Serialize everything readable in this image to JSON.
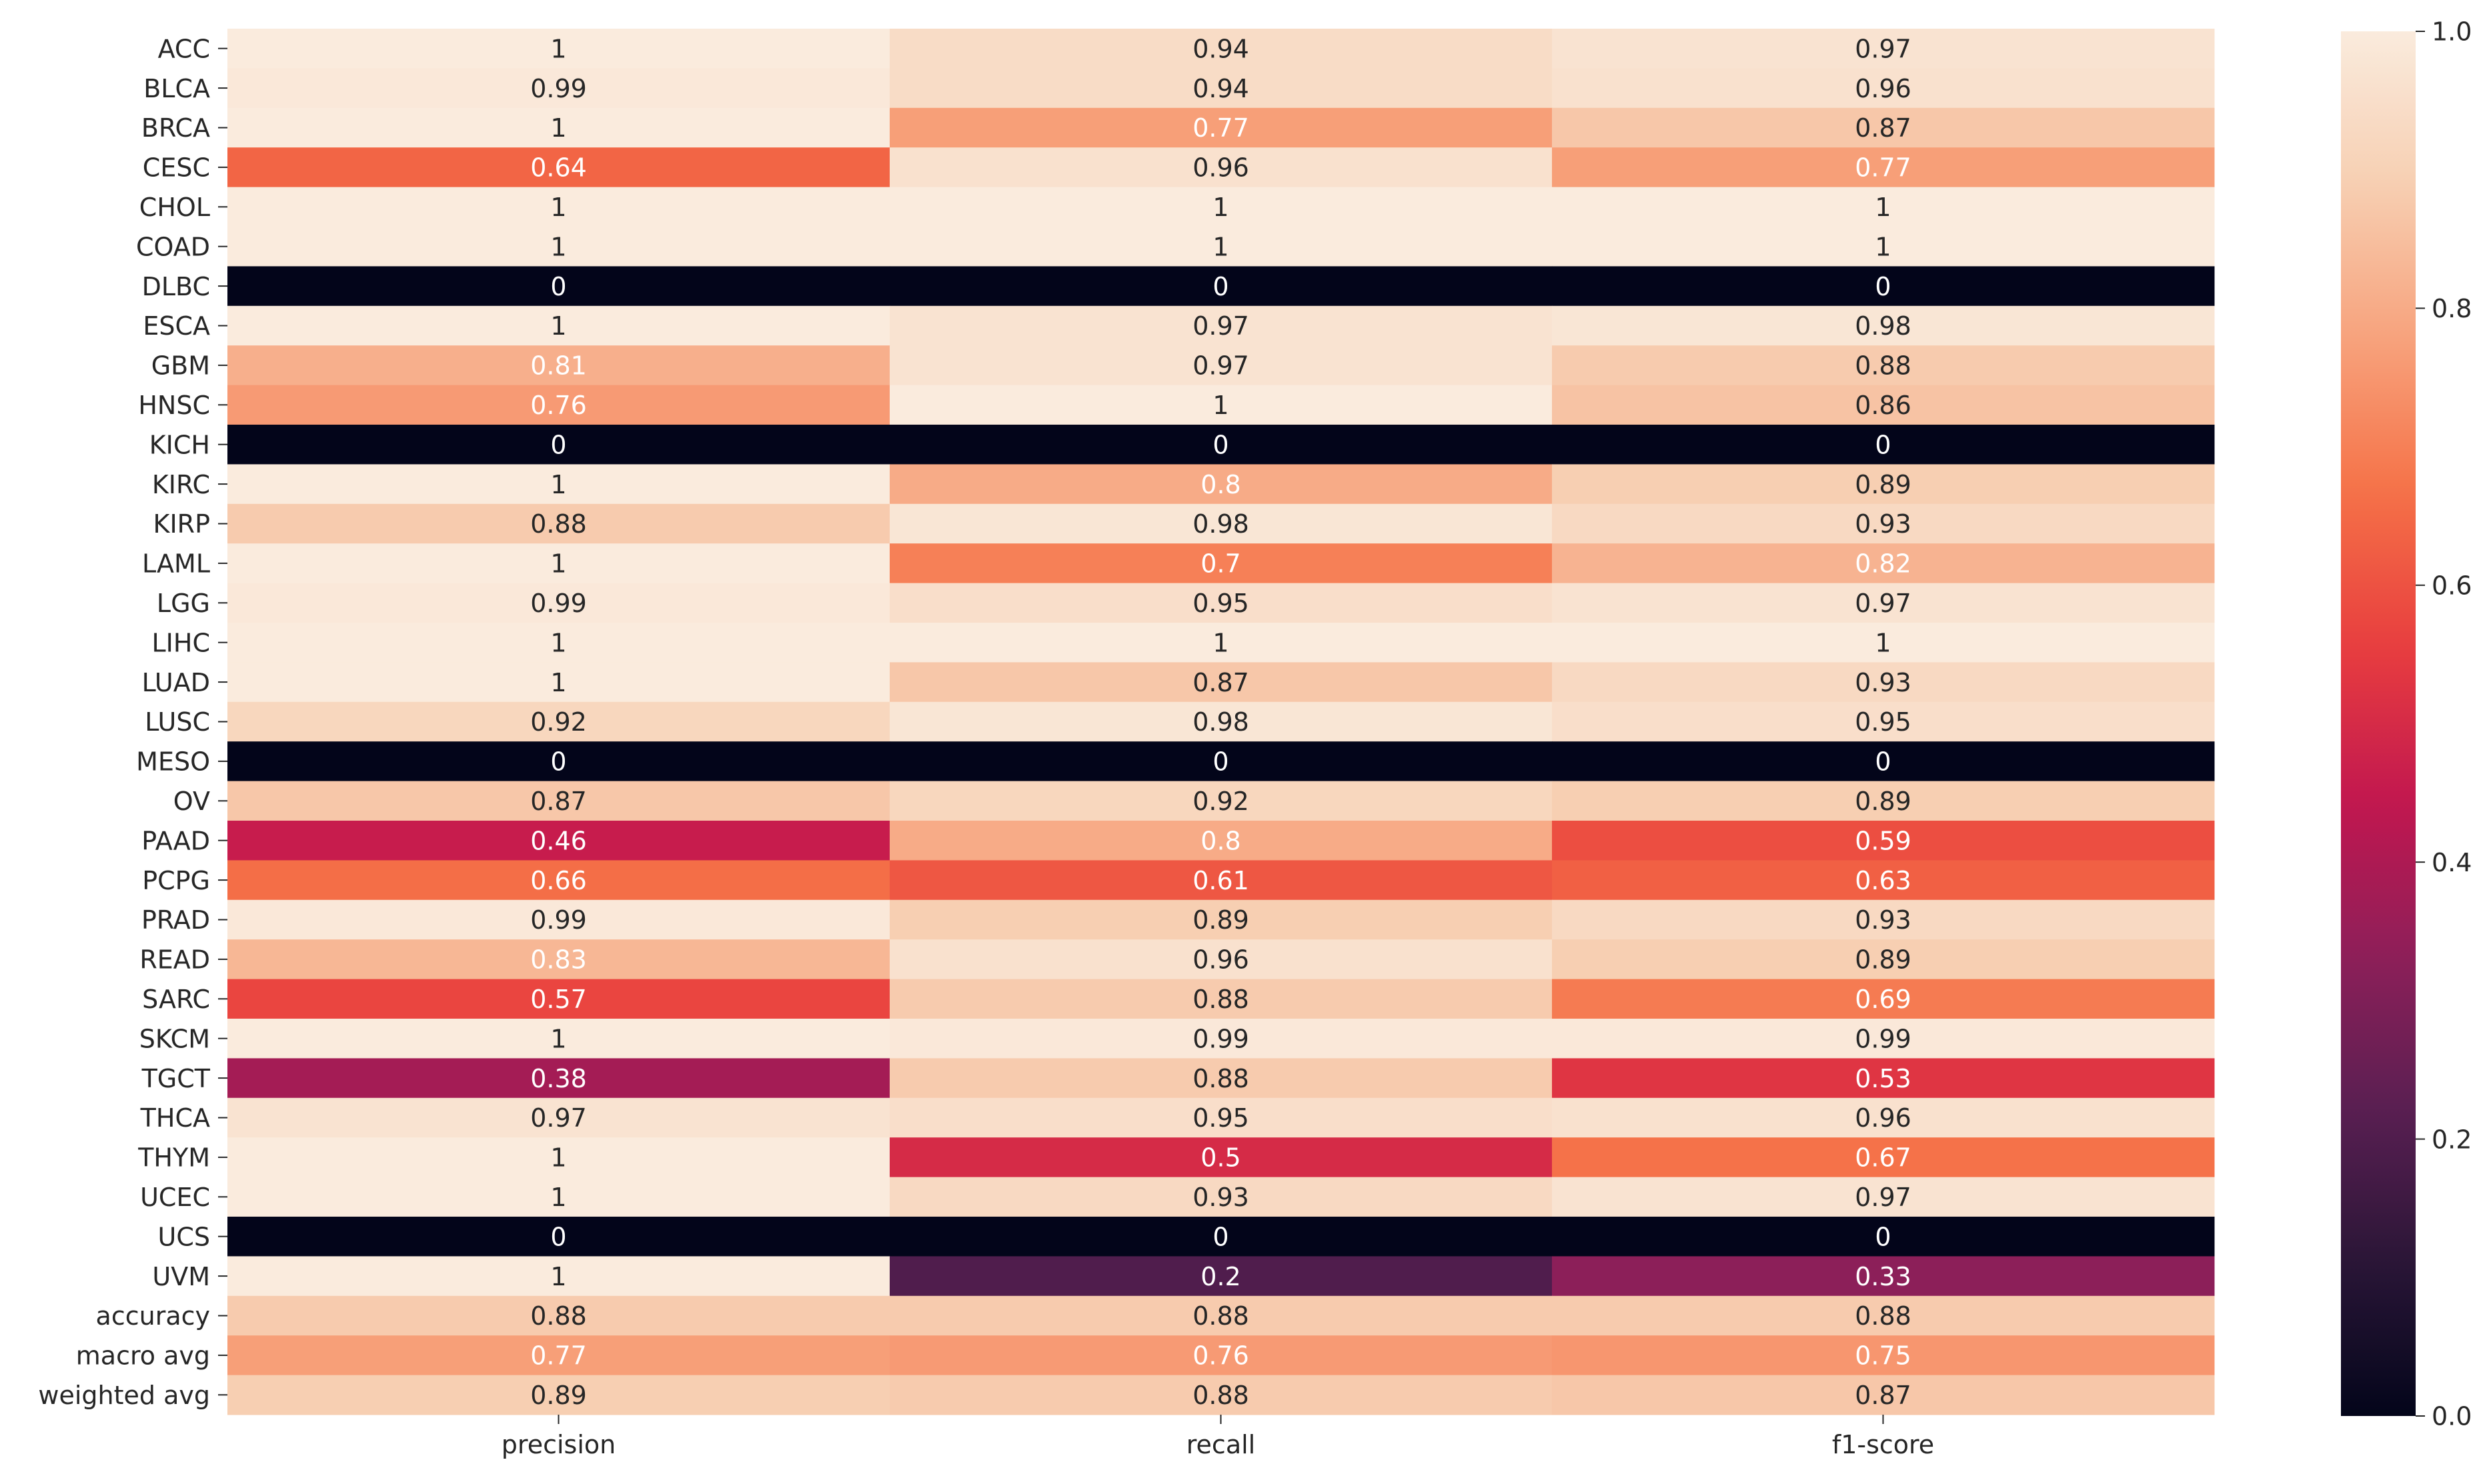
{
  "chart_data": {
    "type": "heatmap",
    "title": "",
    "xlabel": "",
    "ylabel": "",
    "columns": [
      "precision",
      "recall",
      "f1-score"
    ],
    "rows": [
      "ACC",
      "BLCA",
      "BRCA",
      "CESC",
      "CHOL",
      "COAD",
      "DLBC",
      "ESCA",
      "GBM",
      "HNSC",
      "KICH",
      "KIRC",
      "KIRP",
      "LAML",
      "LGG",
      "LIHC",
      "LUAD",
      "LUSC",
      "MESO",
      "OV",
      "PAAD",
      "PCPG",
      "PRAD",
      "READ",
      "SARC",
      "SKCM",
      "TGCT",
      "THCA",
      "THYM",
      "UCEC",
      "UCS",
      "UVM",
      "accuracy",
      "macro avg",
      "weighted avg"
    ],
    "values": [
      [
        1,
        0.94,
        0.97
      ],
      [
        0.99,
        0.94,
        0.96
      ],
      [
        1,
        0.77,
        0.87
      ],
      [
        0.64,
        0.96,
        0.77
      ],
      [
        1,
        1,
        1
      ],
      [
        1,
        1,
        1
      ],
      [
        0,
        0,
        0
      ],
      [
        1,
        0.97,
        0.98
      ],
      [
        0.81,
        0.97,
        0.88
      ],
      [
        0.76,
        1,
        0.86
      ],
      [
        0,
        0,
        0
      ],
      [
        1,
        0.8,
        0.89
      ],
      [
        0.88,
        0.98,
        0.93
      ],
      [
        1,
        0.7,
        0.82
      ],
      [
        0.99,
        0.95,
        0.97
      ],
      [
        1,
        1,
        1
      ],
      [
        1,
        0.87,
        0.93
      ],
      [
        0.92,
        0.98,
        0.95
      ],
      [
        0,
        0,
        0
      ],
      [
        0.87,
        0.92,
        0.89
      ],
      [
        0.46,
        0.8,
        0.59
      ],
      [
        0.66,
        0.61,
        0.63
      ],
      [
        0.99,
        0.89,
        0.93
      ],
      [
        0.83,
        0.96,
        0.89
      ],
      [
        0.57,
        0.88,
        0.69
      ],
      [
        1,
        0.99,
        0.99
      ],
      [
        0.38,
        0.88,
        0.53
      ],
      [
        0.97,
        0.95,
        0.96
      ],
      [
        1,
        0.5,
        0.67
      ],
      [
        1,
        0.93,
        0.97
      ],
      [
        0,
        0,
        0
      ],
      [
        1,
        0.2,
        0.33
      ],
      [
        0.88,
        0.88,
        0.88
      ],
      [
        0.77,
        0.76,
        0.75
      ],
      [
        0.89,
        0.88,
        0.87
      ]
    ],
    "cell_labels": [
      [
        "1",
        "0.94",
        "0.97"
      ],
      [
        "0.99",
        "0.94",
        "0.96"
      ],
      [
        "1",
        "0.77",
        "0.87"
      ],
      [
        "0.64",
        "0.96",
        "0.77"
      ],
      [
        "1",
        "1",
        "1"
      ],
      [
        "1",
        "1",
        "1"
      ],
      [
        "0",
        "0",
        "0"
      ],
      [
        "1",
        "0.97",
        "0.98"
      ],
      [
        "0.81",
        "0.97",
        "0.88"
      ],
      [
        "0.76",
        "1",
        "0.86"
      ],
      [
        "0",
        "0",
        "0"
      ],
      [
        "1",
        "0.8",
        "0.89"
      ],
      [
        "0.88",
        "0.98",
        "0.93"
      ],
      [
        "1",
        "0.7",
        "0.82"
      ],
      [
        "0.99",
        "0.95",
        "0.97"
      ],
      [
        "1",
        "1",
        "1"
      ],
      [
        "1",
        "0.87",
        "0.93"
      ],
      [
        "0.92",
        "0.98",
        "0.95"
      ],
      [
        "0",
        "0",
        "0"
      ],
      [
        "0.87",
        "0.92",
        "0.89"
      ],
      [
        "0.46",
        "0.8",
        "0.59"
      ],
      [
        "0.66",
        "0.61",
        "0.63"
      ],
      [
        "0.99",
        "0.89",
        "0.93"
      ],
      [
        "0.83",
        "0.96",
        "0.89"
      ],
      [
        "0.57",
        "0.88",
        "0.69"
      ],
      [
        "1",
        "0.99",
        "0.99"
      ],
      [
        "0.38",
        "0.88",
        "0.53"
      ],
      [
        "0.97",
        "0.95",
        "0.96"
      ],
      [
        "1",
        "0.5",
        "0.67"
      ],
      [
        "1",
        "0.93",
        "0.97"
      ],
      [
        "0",
        "0",
        "0"
      ],
      [
        "1",
        "0.2",
        "0.33"
      ],
      [
        "0.88",
        "0.88",
        "0.88"
      ],
      [
        "0.77",
        "0.76",
        "0.75"
      ],
      [
        "0.89",
        "0.88",
        "0.87"
      ]
    ],
    "colorbar": {
      "vmin": 0.0,
      "vmax": 1.0,
      "ticks": [
        0.0,
        0.2,
        0.4,
        0.6,
        0.8,
        1.0
      ],
      "tick_labels": [
        "0.0",
        "0.2",
        "0.4",
        "0.6",
        "0.8",
        "1.0"
      ],
      "colormap": "rocket",
      "colormap_stops": [
        "#03051a",
        "#2a1637",
        "#5a1f52",
        "#8e1f59",
        "#c2174f",
        "#e83e3f",
        "#f57147",
        "#f7a27c",
        "#f7cfb2",
        "#faebdd"
      ]
    },
    "grid": false,
    "legend": "colorbar-right"
  }
}
